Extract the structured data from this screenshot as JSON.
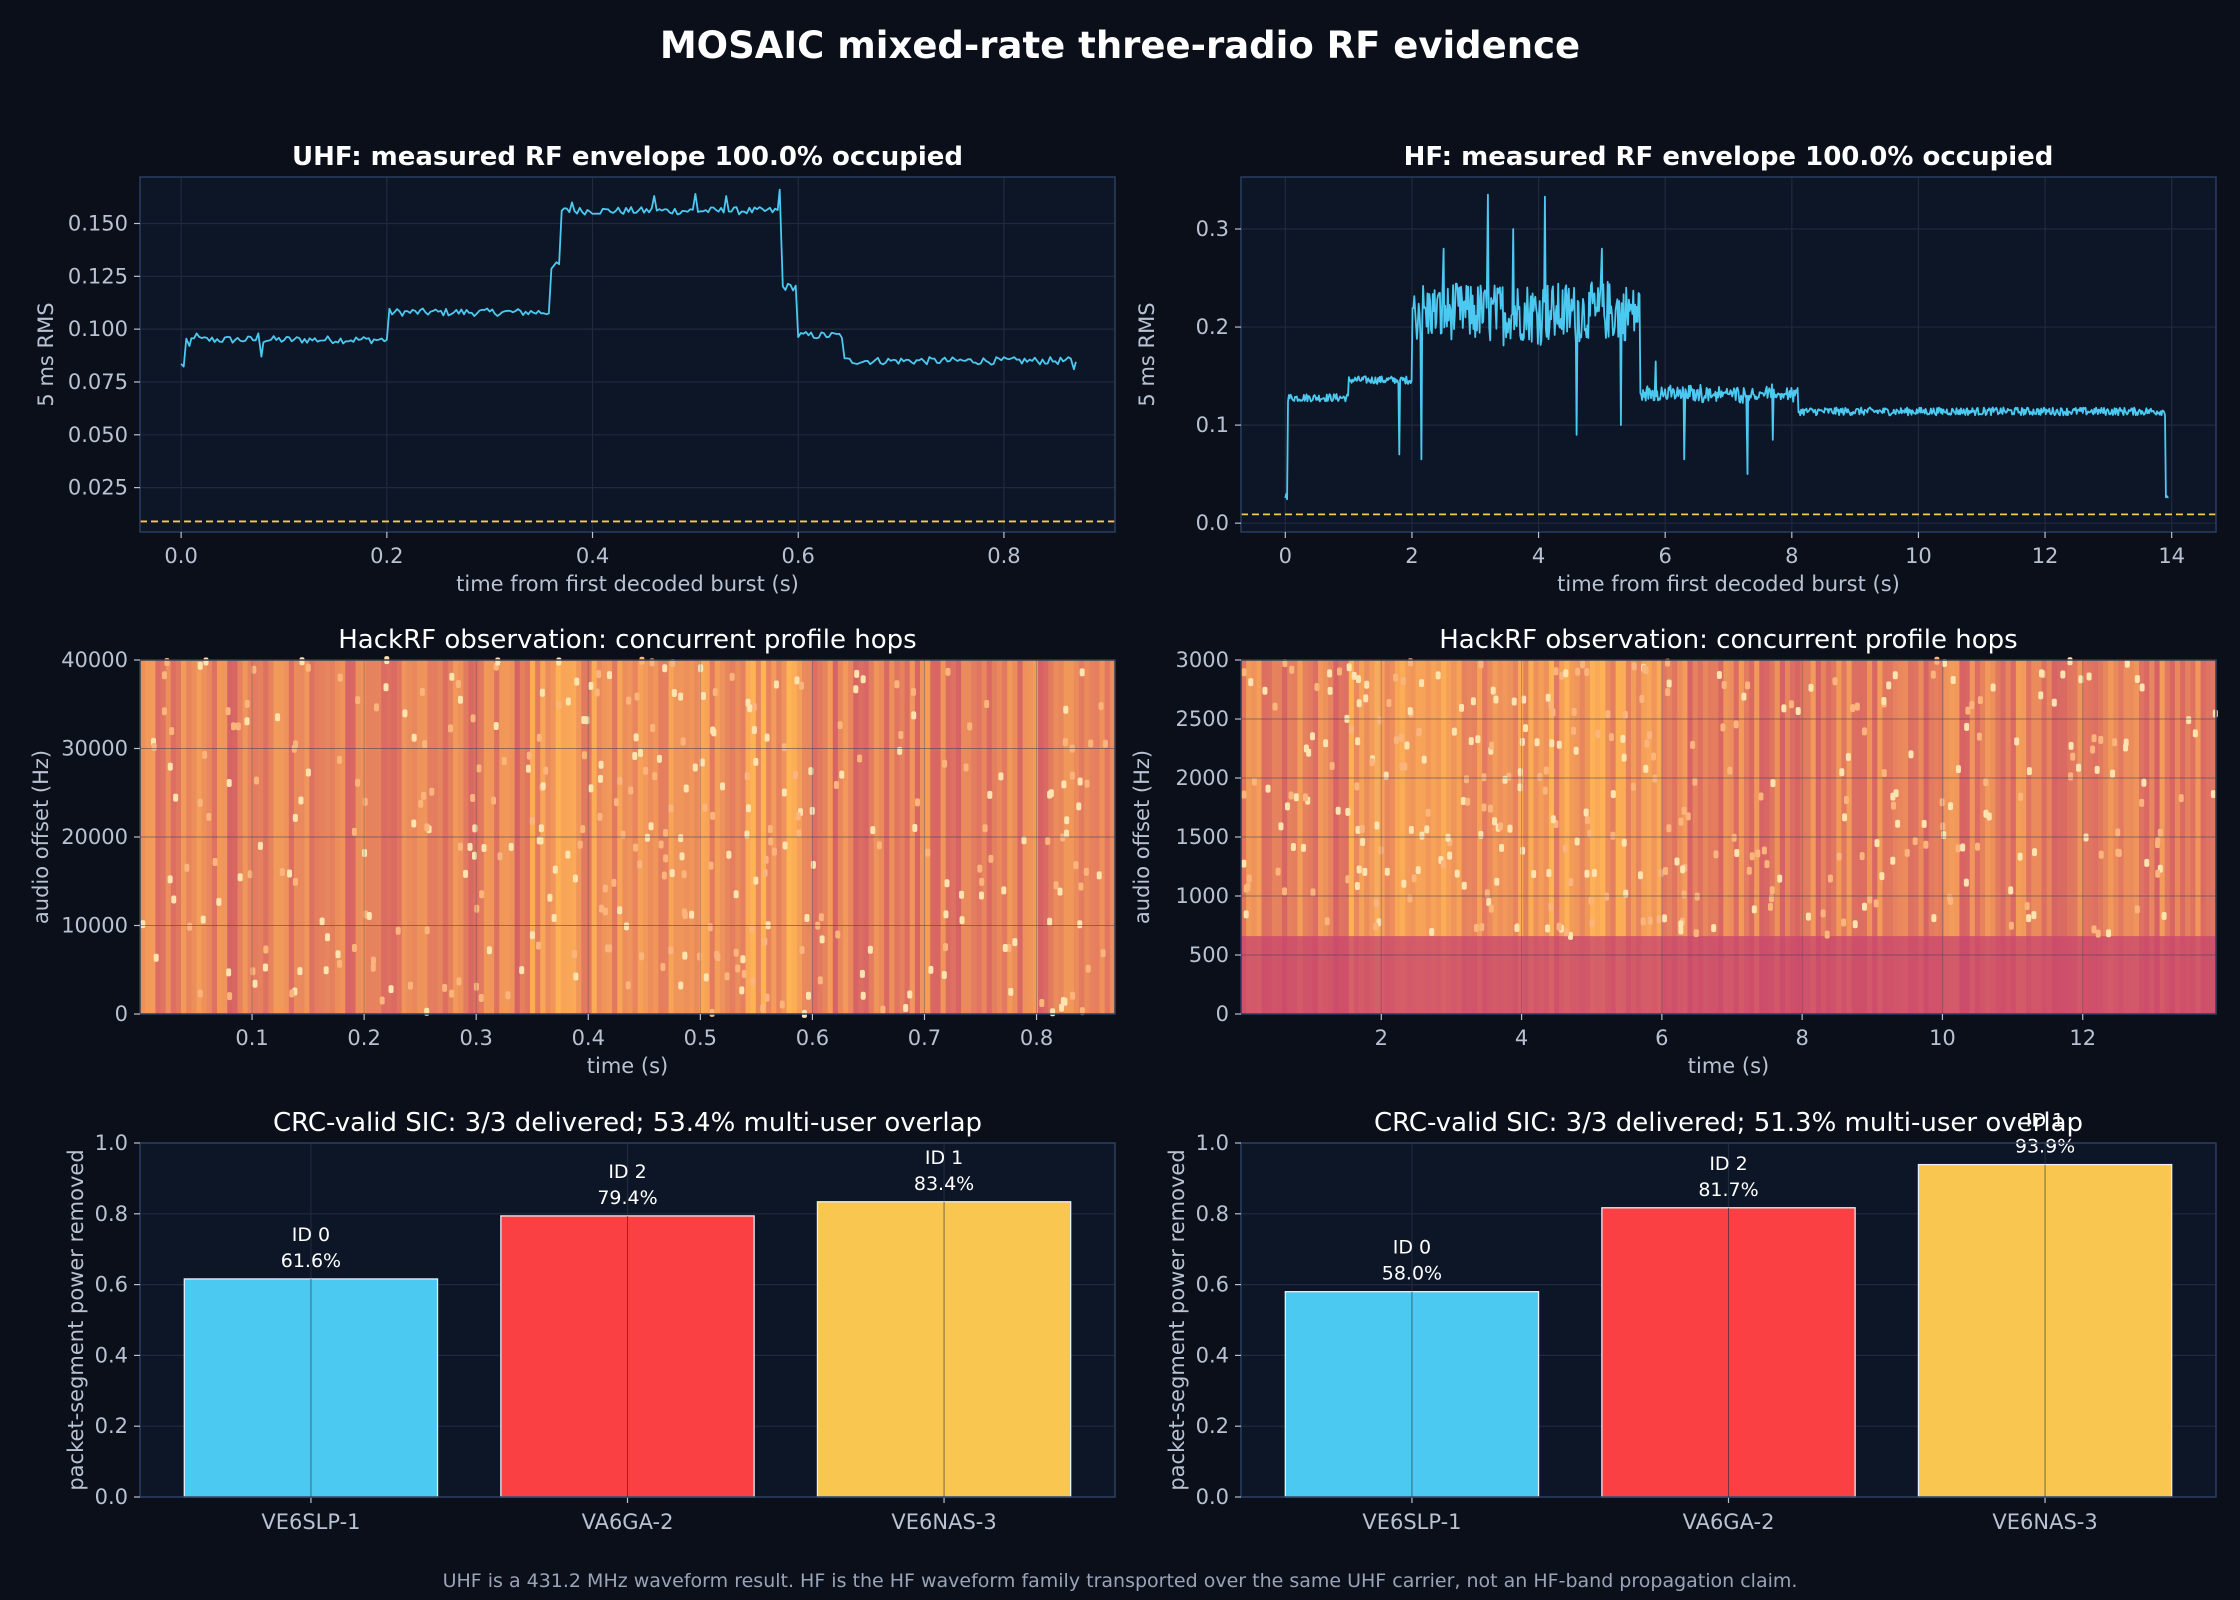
{
  "title": "MOSAIC mixed-rate three-radio RF evidence",
  "footnote": "UHF is a 431.2 MHz waveform result. HF is the HF waveform family transported over the same UHF carrier, not an HF-band propagation claim.",
  "colors": {
    "background": "#0a0f1a",
    "panel": "#0d1626",
    "trace": "#4cc9f0",
    "threshold": "#f9c74f",
    "bar_1": "#4cc9f0",
    "bar_2": "#fb4043",
    "bar_3": "#f9c74f",
    "text": "#ffffff",
    "muted": "#b8c2d2"
  },
  "chart_data": [
    {
      "id": "uhf_envelope",
      "type": "line",
      "title": "UHF: measured RF envelope 100.0% occupied",
      "xlabel": "time from first decoded burst (s)",
      "ylabel": "5 ms RMS",
      "xlim": [
        -0.04,
        0.908
      ],
      "ylim": [
        0.004,
        0.172
      ],
      "xticks": [
        0.0,
        0.2,
        0.4,
        0.6,
        0.8
      ],
      "xtick_labels": [
        "0.0",
        "0.2",
        "0.4",
        "0.6",
        "0.8"
      ],
      "yticks": [
        0.025,
        0.05,
        0.075,
        0.1,
        0.125,
        0.15
      ],
      "ytick_labels": [
        "0.025",
        "0.050",
        "0.075",
        "0.100",
        "0.125",
        "0.150"
      ],
      "threshold": 0.009,
      "segments": [
        [
          0.0,
          0.005,
          0.083
        ],
        [
          0.005,
          0.2,
          0.095
        ],
        [
          0.2,
          0.36,
          0.108
        ],
        [
          0.36,
          0.37,
          0.13
        ],
        [
          0.37,
          0.585,
          0.156
        ],
        [
          0.585,
          0.6,
          0.12
        ],
        [
          0.6,
          0.645,
          0.097
        ],
        [
          0.645,
          0.87,
          0.085
        ]
      ],
      "spikes": [
        [
          0.008,
          0.092
        ],
        [
          0.015,
          0.098
        ],
        [
          0.075,
          0.098
        ],
        [
          0.078,
          0.087
        ],
        [
          0.38,
          0.16
        ],
        [
          0.46,
          0.163
        ],
        [
          0.5,
          0.164
        ],
        [
          0.53,
          0.163
        ],
        [
          0.582,
          0.166
        ],
        [
          0.868,
          0.081
        ]
      ],
      "duration": 0.87,
      "noise": 0.0018,
      "point_count": 348
    },
    {
      "id": "hf_envelope",
      "type": "line",
      "title": "HF: measured RF envelope 100.0% occupied",
      "xlabel": "time from first decoded burst (s)",
      "ylabel": "5 ms RMS",
      "xlim": [
        -0.7,
        14.7
      ],
      "ylim": [
        -0.009,
        0.353
      ],
      "xticks": [
        0,
        2,
        4,
        6,
        8,
        10,
        12,
        14
      ],
      "xtick_labels": [
        "0",
        "2",
        "4",
        "6",
        "8",
        "10",
        "12",
        "14"
      ],
      "yticks": [
        0.0,
        0.1,
        0.2,
        0.3
      ],
      "ytick_labels": [
        "0.0",
        "0.1",
        "0.2",
        "0.3"
      ],
      "threshold": 0.009,
      "segments": [
        [
          0.0,
          0.03,
          0.028
        ],
        [
          0.03,
          1.0,
          0.128
        ],
        [
          1.0,
          2.0,
          0.146
        ],
        [
          2.0,
          5.6,
          0.215
        ],
        [
          5.6,
          8.1,
          0.132
        ],
        [
          8.1,
          13.9,
          0.114
        ],
        [
          13.9,
          13.95,
          0.028
        ]
      ],
      "spikes": [
        [
          3.2,
          0.335
        ],
        [
          4.1,
          0.333
        ],
        [
          2.5,
          0.28
        ],
        [
          3.6,
          0.3
        ],
        [
          5.0,
          0.28
        ],
        [
          1.8,
          0.07
        ],
        [
          2.15,
          0.065
        ],
        [
          4.6,
          0.09
        ],
        [
          5.3,
          0.1
        ],
        [
          7.3,
          0.05
        ],
        [
          6.3,
          0.065
        ],
        [
          7.7,
          0.085
        ],
        [
          5.85,
          0.165
        ]
      ],
      "duration": 13.95,
      "noise": 0.004,
      "point_count": 1000
    },
    {
      "id": "uhf_spectrogram",
      "type": "heatmap",
      "title": "HackRF observation: concurrent profile hops",
      "xlabel": "time (s)",
      "ylabel": "audio offset (Hz)",
      "xlim": [
        0.0,
        0.87
      ],
      "ylim": [
        0,
        40000
      ],
      "xticks": [
        0.1,
        0.2,
        0.3,
        0.4,
        0.5,
        0.6,
        0.7,
        0.8
      ],
      "xtick_labels": [
        "0.1",
        "0.2",
        "0.3",
        "0.4",
        "0.5",
        "0.6",
        "0.7",
        "0.8"
      ],
      "yticks": [
        0,
        10000,
        20000,
        30000,
        40000
      ],
      "ytick_labels": [
        "0",
        "10000",
        "20000",
        "30000",
        "40000"
      ],
      "colormap": "magma",
      "dense_range": [
        0.35,
        0.6
      ],
      "bottom_band": 0.0
    },
    {
      "id": "hf_spectrogram",
      "type": "heatmap",
      "title": "HackRF observation: concurrent profile hops",
      "xlabel": "time (s)",
      "ylabel": "audio offset (Hz)",
      "xlim": [
        0.0,
        13.9
      ],
      "ylim": [
        0,
        3000
      ],
      "xticks": [
        2,
        4,
        6,
        8,
        10,
        12
      ],
      "xtick_labels": [
        "2",
        "4",
        "6",
        "8",
        "10",
        "12"
      ],
      "yticks": [
        0,
        500,
        1000,
        1500,
        2000,
        2500,
        3000
      ],
      "ytick_labels": [
        "0",
        "500",
        "1000",
        "1500",
        "2000",
        "2500",
        "3000"
      ],
      "colormap": "magma",
      "dense_range": [
        1.5,
        6.0
      ],
      "bottom_band": 0.22
    },
    {
      "id": "uhf_sic",
      "type": "bar",
      "title": "CRC-valid SIC: 3/3 delivered; 53.4% multi-user overlap",
      "ylabel": "packet-segment power removed",
      "ylim": [
        0,
        1
      ],
      "yticks": [
        0.0,
        0.2,
        0.4,
        0.6,
        0.8,
        1.0
      ],
      "ytick_labels": [
        "0.0",
        "0.2",
        "0.4",
        "0.6",
        "0.8",
        "1.0"
      ],
      "categories": [
        "VE6SLP-1",
        "VA6GA-2",
        "VE6NAS-3"
      ],
      "values": [
        0.616,
        0.794,
        0.834
      ],
      "value_labels": [
        "61.6%",
        "79.4%",
        "83.4%"
      ],
      "ids": [
        "ID 0",
        "ID 2",
        "ID 1"
      ]
    },
    {
      "id": "hf_sic",
      "type": "bar",
      "title": "CRC-valid SIC: 3/3 delivered; 51.3% multi-user overlap",
      "ylabel": "packet-segment power removed",
      "ylim": [
        0,
        1
      ],
      "yticks": [
        0.0,
        0.2,
        0.4,
        0.6,
        0.8,
        1.0
      ],
      "ytick_labels": [
        "0.0",
        "0.2",
        "0.4",
        "0.6",
        "0.8",
        "1.0"
      ],
      "categories": [
        "VE6SLP-1",
        "VA6GA-2",
        "VE6NAS-3"
      ],
      "values": [
        0.58,
        0.817,
        0.939
      ],
      "value_labels": [
        "58.0%",
        "81.7%",
        "93.9%"
      ],
      "ids": [
        "ID 0",
        "ID 2",
        "ID 1"
      ]
    }
  ]
}
